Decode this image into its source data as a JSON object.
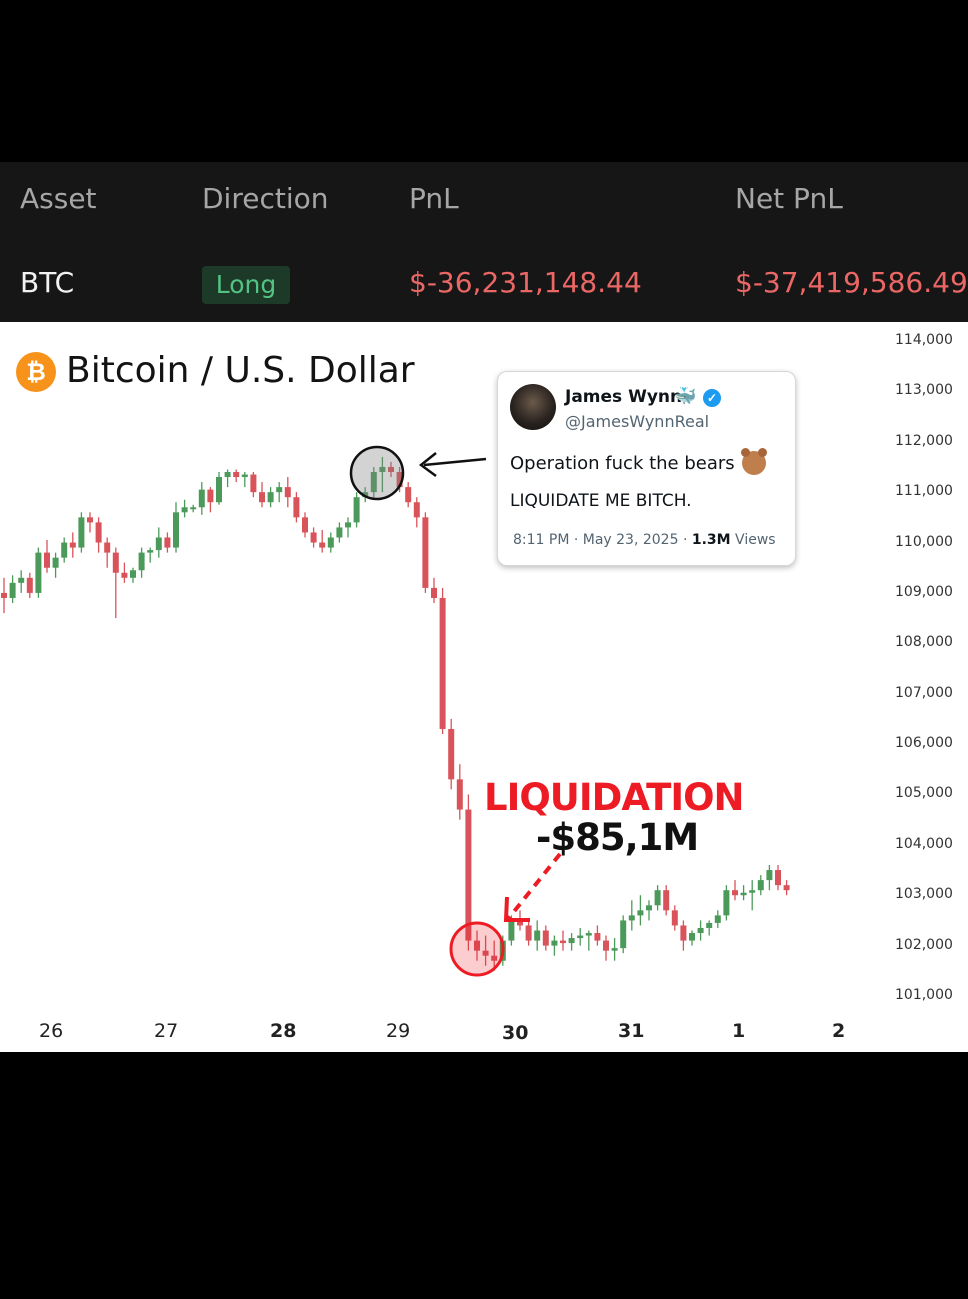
{
  "table": {
    "headers": [
      "Asset",
      "Direction",
      "PnL",
      "Net PnL"
    ],
    "row": {
      "asset": "BTC",
      "direction": "Long",
      "pnl": "$-36,231,148.44",
      "net_pnl": "$-37,419,586.49"
    }
  },
  "colors": {
    "up": "#4c9a5a",
    "down": "#d9535a",
    "loss_text": "#ea6765",
    "long_badge_text": "#54c283",
    "annotation_red": "#ed1c24"
  },
  "tweet": {
    "name": "James Wynn",
    "handle": "@JamesWynnReal",
    "line1": "Operation fuck the bears",
    "line2": "LIQUIDATE ME BITCH.",
    "time_date": "8:11 PM · May 23, 2025 ·",
    "views_count": "1.3M",
    "views_label": "Views",
    "icons": [
      "avatar",
      "whale-icon",
      "verified-icon",
      "bear-icon"
    ]
  },
  "annotation": {
    "label": "LIQUIDATION",
    "amount": "-$85,1M"
  },
  "chart_data": {
    "type": "candlestick",
    "title": "Bitcoin / U.S. Dollar",
    "y_ticks": [
      "114,000",
      "113,000",
      "112,000",
      "111,000",
      "110,000",
      "109,000",
      "108,000",
      "107,000",
      "106,000",
      "105,000",
      "104,000",
      "103,000",
      "102,000",
      "101,000"
    ],
    "ylim": [
      101000,
      114000
    ],
    "x_ticks": [
      {
        "label": "26",
        "bold": false
      },
      {
        "label": "27",
        "bold": false
      },
      {
        "label": "28",
        "bold": true
      },
      {
        "label": "29",
        "bold": false
      },
      {
        "label": "30",
        "bold": true
      },
      {
        "label": "31",
        "bold": true
      },
      {
        "label": "1",
        "bold": true
      },
      {
        "label": "2",
        "bold": true
      }
    ],
    "ohlc": [
      [
        109000,
        109300,
        108600,
        108900
      ],
      [
        108900,
        109350,
        108800,
        109200
      ],
      [
        109200,
        109450,
        109000,
        109300
      ],
      [
        109300,
        109400,
        108900,
        109000
      ],
      [
        109000,
        109900,
        108900,
        109800
      ],
      [
        109800,
        110050,
        109400,
        109500
      ],
      [
        109500,
        109800,
        109300,
        109700
      ],
      [
        109700,
        110100,
        109600,
        110000
      ],
      [
        110000,
        110200,
        109700,
        109900
      ],
      [
        109900,
        110600,
        109800,
        110500
      ],
      [
        110500,
        110600,
        110200,
        110400
      ],
      [
        110400,
        110500,
        109800,
        110000
      ],
      [
        110000,
        110100,
        109500,
        109800
      ],
      [
        109800,
        109900,
        108500,
        109400
      ],
      [
        109400,
        109600,
        109200,
        109300
      ],
      [
        109300,
        109500,
        109200,
        109450
      ],
      [
        109450,
        109900,
        109300,
        109800
      ],
      [
        109800,
        109900,
        109600,
        109850
      ],
      [
        109850,
        110300,
        109700,
        110100
      ],
      [
        110100,
        110200,
        109800,
        109900
      ],
      [
        109900,
        110800,
        109800,
        110600
      ],
      [
        110600,
        110850,
        110500,
        110700
      ],
      [
        110700,
        110750,
        110600,
        110700
      ],
      [
        110700,
        111200,
        110550,
        111050
      ],
      [
        111050,
        111100,
        110600,
        110800
      ],
      [
        110800,
        111400,
        110750,
        111300
      ],
      [
        111300,
        111450,
        111100,
        111400
      ],
      [
        111400,
        111450,
        111200,
        111300
      ],
      [
        111300,
        111400,
        111100,
        111350
      ],
      [
        111350,
        111400,
        110900,
        111000
      ],
      [
        111000,
        111200,
        110700,
        110800
      ],
      [
        110800,
        111100,
        110700,
        111000
      ],
      [
        111000,
        111200,
        110800,
        111100
      ],
      [
        111100,
        111300,
        110700,
        110900
      ],
      [
        110900,
        111000,
        110400,
        110500
      ],
      [
        110500,
        110600,
        110100,
        110200
      ],
      [
        110200,
        110300,
        109900,
        110000
      ],
      [
        110000,
        110250,
        109800,
        109900
      ],
      [
        109900,
        110200,
        109800,
        110100
      ],
      [
        110100,
        110400,
        110000,
        110300
      ],
      [
        110300,
        110500,
        110100,
        110400
      ],
      [
        110400,
        111000,
        110300,
        110900
      ],
      [
        110900,
        111100,
        110800,
        111000
      ],
      [
        111000,
        111500,
        110900,
        111400
      ],
      [
        111400,
        111700,
        111000,
        111500
      ],
      [
        111500,
        111600,
        111300,
        111400
      ],
      [
        111400,
        111500,
        111000,
        111100
      ],
      [
        111100,
        111200,
        110700,
        110800
      ],
      [
        110800,
        110900,
        110300,
        110500
      ],
      [
        110500,
        110600,
        109000,
        109100
      ],
      [
        109100,
        109300,
        108800,
        108900
      ],
      [
        108900,
        109100,
        106200,
        106300
      ],
      [
        106300,
        106500,
        105100,
        105300
      ],
      [
        105300,
        105600,
        104500,
        104700
      ],
      [
        104700,
        105000,
        101900,
        102100
      ],
      [
        102100,
        102300,
        101700,
        101900
      ],
      [
        101900,
        102200,
        101600,
        101800
      ],
      [
        101800,
        102100,
        101500,
        101700
      ],
      [
        101700,
        102200,
        101600,
        102100
      ],
      [
        102100,
        102600,
        102000,
        102500
      ],
      [
        102500,
        102700,
        102300,
        102400
      ],
      [
        102400,
        102500,
        102000,
        102100
      ],
      [
        102100,
        102500,
        101900,
        102300
      ],
      [
        102300,
        102400,
        101900,
        102000
      ],
      [
        102000,
        102200,
        101800,
        102100
      ],
      [
        102100,
        102300,
        101900,
        102050
      ],
      [
        102050,
        102250,
        101900,
        102150
      ],
      [
        102150,
        102350,
        102000,
        102200
      ],
      [
        102200,
        102300,
        101900,
        102250
      ],
      [
        102250,
        102400,
        102000,
        102100
      ],
      [
        102100,
        102200,
        101700,
        101900
      ],
      [
        101900,
        102150,
        101700,
        101950
      ],
      [
        101950,
        102600,
        101850,
        102500
      ],
      [
        102500,
        102900,
        102300,
        102600
      ],
      [
        102600,
        103000,
        102400,
        102700
      ],
      [
        102700,
        102900,
        102500,
        102800
      ],
      [
        102800,
        103200,
        102700,
        103100
      ],
      [
        103100,
        103200,
        102600,
        102700
      ],
      [
        102700,
        102800,
        102300,
        102400
      ],
      [
        102400,
        102500,
        101900,
        102100
      ],
      [
        102100,
        102300,
        102000,
        102250
      ],
      [
        102250,
        102500,
        102100,
        102350
      ],
      [
        102350,
        102500,
        102200,
        102450
      ],
      [
        102450,
        102700,
        102350,
        102600
      ],
      [
        102600,
        103200,
        102500,
        103100
      ],
      [
        103100,
        103300,
        102900,
        103000
      ],
      [
        103000,
        103200,
        102900,
        103050
      ],
      [
        103050,
        103300,
        102700,
        103100
      ],
      [
        103100,
        103400,
        103000,
        103300
      ],
      [
        103300,
        103600,
        103100,
        103500
      ],
      [
        103500,
        103600,
        103100,
        103200
      ],
      [
        103200,
        103300,
        103000,
        103100
      ]
    ]
  }
}
